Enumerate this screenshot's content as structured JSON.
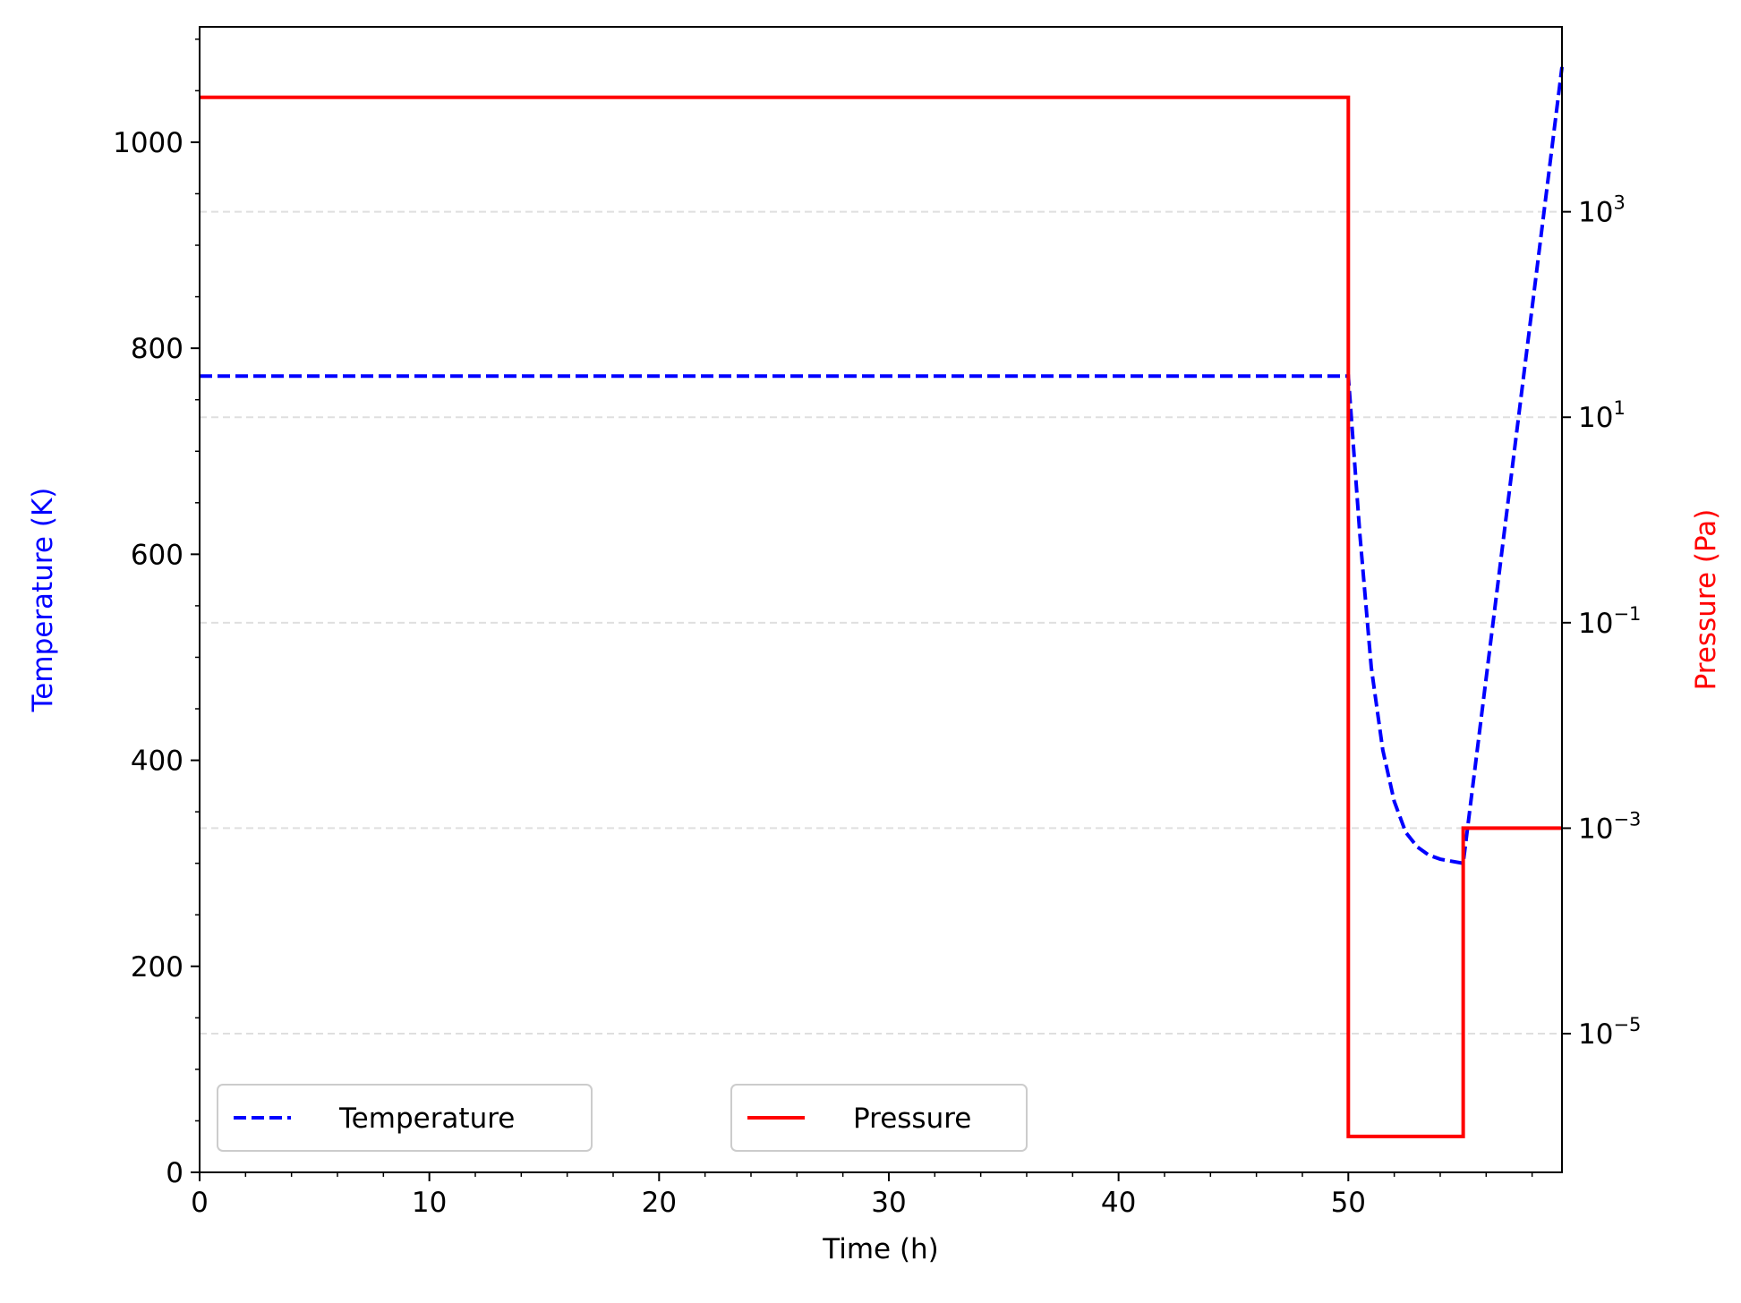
{
  "chart_data": {
    "type": "line",
    "xlabel": "Time (h)",
    "ylabel_left": "Temperature (K)",
    "ylabel_right": "Pressure (Pa)",
    "xlim": [
      0,
      59.3
    ],
    "ylim_left": [
      0,
      1112
    ],
    "ylim_right_log10": [
      -6.35,
      4.8
    ],
    "right_scale": "log",
    "x_ticks": [
      0,
      10,
      20,
      30,
      40,
      50
    ],
    "y_left_ticks": [
      0,
      200,
      400,
      600,
      800,
      1000
    ],
    "y_right_ticks_exponents": [
      -5,
      -3,
      -1,
      1,
      3
    ],
    "y_right_tick_base": "10",
    "grid": "horizontal dashed at right-axis major ticks",
    "legend": {
      "placement": "bottom-left",
      "entries": [
        "Temperature",
        "Pressure"
      ]
    },
    "series": [
      {
        "name": "Temperature",
        "axis": "left",
        "style": "dashed",
        "color": "#0000ff",
        "points": [
          [
            0,
            773
          ],
          [
            50,
            773
          ],
          [
            50.5,
            620
          ],
          [
            51,
            490
          ],
          [
            51.5,
            410
          ],
          [
            52,
            360
          ],
          [
            52.5,
            330
          ],
          [
            53,
            316
          ],
          [
            53.5,
            308
          ],
          [
            54,
            304
          ],
          [
            55,
            300
          ],
          [
            59.3,
            1073
          ]
        ]
      },
      {
        "name": "Pressure",
        "axis": "right",
        "style": "solid",
        "color": "#ff0000",
        "points": [
          [
            0,
            13000
          ],
          [
            50,
            13000
          ],
          [
            50,
            1e-06
          ],
          [
            55,
            1e-06
          ],
          [
            55,
            0.001
          ],
          [
            59.3,
            0.001
          ]
        ]
      }
    ]
  }
}
